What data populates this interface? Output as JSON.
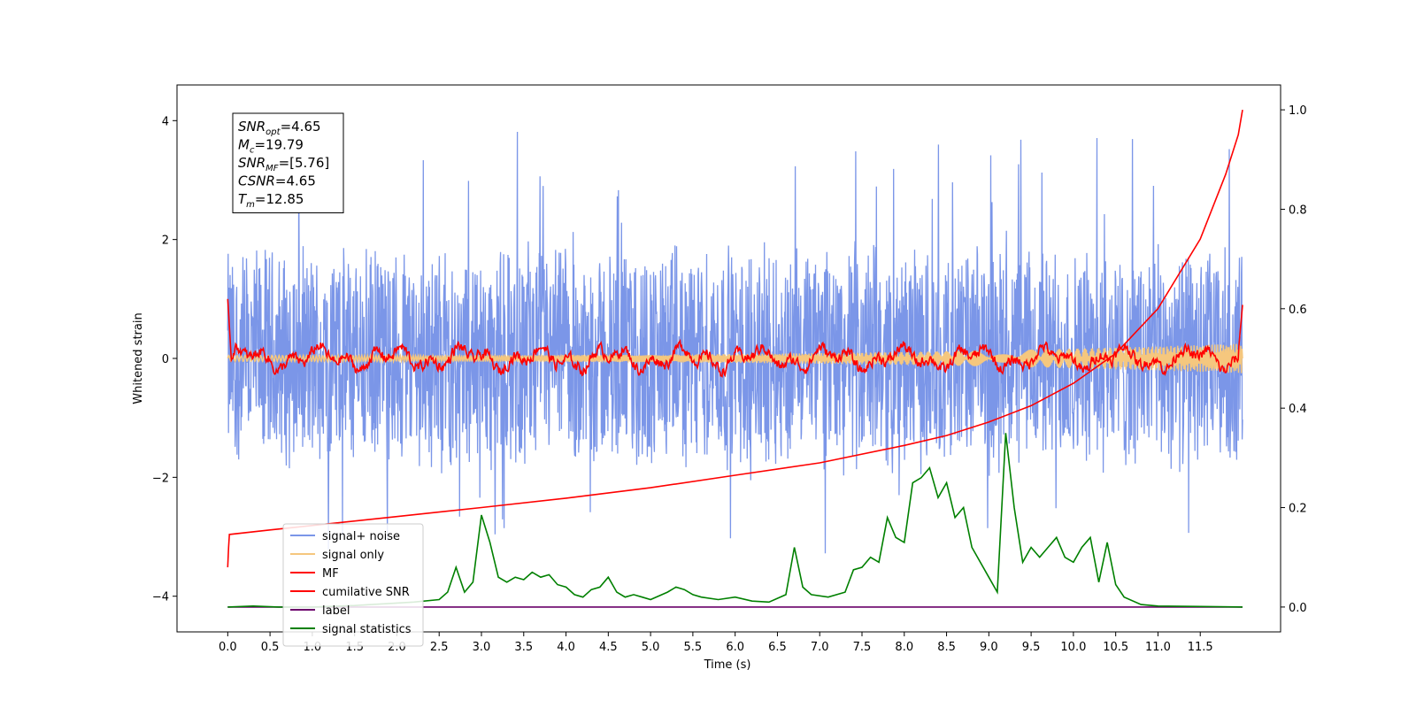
{
  "chart_data": {
    "type": "line",
    "xlabel": "Time (s)",
    "ylabel": "Whitened strain",
    "xlim": [
      -0.6,
      12.45
    ],
    "ylim_left": [
      -4.6,
      4.6
    ],
    "ylim_right": [
      -0.05,
      1.05
    ],
    "x_ticks": [
      0.0,
      0.5,
      1.0,
      1.5,
      2.0,
      2.5,
      3.0,
      3.5,
      4.0,
      4.5,
      5.0,
      5.5,
      6.0,
      6.5,
      7.0,
      7.5,
      8.0,
      8.5,
      9.0,
      9.5,
      10.0,
      10.5,
      11.0,
      11.5
    ],
    "x_tick_labels": [
      "0.0",
      "0.5",
      "1.0",
      "1.5",
      "2.0",
      "2.5",
      "3.0",
      "3.5",
      "4.0",
      "4.5",
      "5.0",
      "5.5",
      "6.0",
      "6.5",
      "7.0",
      "7.5",
      "8.0",
      "8.5",
      "9.0",
      "9.5",
      "10.0",
      "10.5",
      "11.0",
      "11.5"
    ],
    "y_left_ticks": [
      -4,
      -2,
      0,
      2,
      4
    ],
    "y_left_tick_labels": [
      "−4",
      "−2",
      "0",
      "2",
      "4"
    ],
    "y_right_ticks": [
      0.0,
      0.2,
      0.4,
      0.6,
      0.8,
      1.0
    ],
    "y_right_tick_labels": [
      "0.0",
      "0.2",
      "0.4",
      "0.6",
      "0.8",
      "1.0"
    ],
    "grid": false,
    "legend_position": "lower-left",
    "annotation": {
      "lines": [
        {
          "base": "SNR",
          "sub": "opt",
          "value": "=4.65"
        },
        {
          "base": "M",
          "sub": "c",
          "value": "=19.79"
        },
        {
          "base": "SNR",
          "sub": "MF",
          "value": "=[5.76]"
        },
        {
          "base": "CSNR",
          "sub": "",
          "value": "=4.65"
        },
        {
          "base": "T",
          "sub": "m",
          "value": "=12.85"
        }
      ]
    },
    "series": [
      {
        "name": "signal+ noise",
        "axis": "left",
        "color": "#7b96e8",
        "kind": "noise",
        "x_range": [
          0.0,
          12.0
        ],
        "envelope": [
          -2.0,
          2.0
        ],
        "extreme_range": [
          -3.3,
          3.9
        ]
      },
      {
        "name": "signal only",
        "axis": "left",
        "color": "#f5c77e",
        "kind": "chirp",
        "x_range": [
          0.0,
          12.0
        ],
        "amplitude_start": 0.05,
        "amplitude_end": 0.25
      },
      {
        "name": "MF",
        "axis": "left",
        "color": "#ff0000",
        "kind": "matched-filter",
        "x_range": [
          0.0,
          12.0
        ],
        "start_value": 1.0,
        "end_value": 0.9,
        "range": [
          -0.3,
          0.5
        ]
      },
      {
        "name": "cumilative SNR",
        "axis": "right",
        "color": "#ff0000",
        "x": [
          0.0,
          0.01,
          0.02,
          0.5,
          1.0,
          2.0,
          3.0,
          4.0,
          5.0,
          6.0,
          7.0,
          8.0,
          8.5,
          9.0,
          9.5,
          10.0,
          10.5,
          11.0,
          11.5,
          11.8,
          11.95,
          12.0
        ],
        "values": [
          0.08,
          0.12,
          0.146,
          0.155,
          0.164,
          0.182,
          0.2,
          0.219,
          0.24,
          0.265,
          0.29,
          0.325,
          0.345,
          0.372,
          0.405,
          0.45,
          0.51,
          0.6,
          0.74,
          0.87,
          0.95,
          1.0
        ]
      },
      {
        "name": "label",
        "axis": "right",
        "color": "#6a006a",
        "x": [
          0.0,
          12.0
        ],
        "values": [
          0.0,
          0.0
        ]
      },
      {
        "name": "signal statistics",
        "axis": "right",
        "color": "#008000",
        "x": [
          0.0,
          0.3,
          0.6,
          1.0,
          1.5,
          2.0,
          2.2,
          2.5,
          2.6,
          2.7,
          2.8,
          2.9,
          3.0,
          3.1,
          3.2,
          3.3,
          3.4,
          3.5,
          3.6,
          3.7,
          3.8,
          3.9,
          4.0,
          4.1,
          4.2,
          4.3,
          4.4,
          4.5,
          4.6,
          4.7,
          4.8,
          4.9,
          5.0,
          5.2,
          5.3,
          5.4,
          5.5,
          5.6,
          5.8,
          6.0,
          6.2,
          6.4,
          6.6,
          6.7,
          6.8,
          6.9,
          7.1,
          7.3,
          7.4,
          7.5,
          7.6,
          7.7,
          7.8,
          7.9,
          8.0,
          8.1,
          8.2,
          8.3,
          8.4,
          8.5,
          8.6,
          8.7,
          8.8,
          9.0,
          9.1,
          9.2,
          9.3,
          9.4,
          9.5,
          9.6,
          9.7,
          9.8,
          9.9,
          10.0,
          10.1,
          10.2,
          10.3,
          10.4,
          10.5,
          10.6,
          10.8,
          11.0,
          11.5,
          12.0
        ],
        "values": [
          0.0,
          0.002,
          0.0,
          0.0,
          0.003,
          0.008,
          0.01,
          0.015,
          0.03,
          0.08,
          0.03,
          0.05,
          0.185,
          0.13,
          0.06,
          0.05,
          0.06,
          0.055,
          0.07,
          0.06,
          0.065,
          0.045,
          0.04,
          0.025,
          0.02,
          0.035,
          0.04,
          0.06,
          0.03,
          0.02,
          0.025,
          0.02,
          0.015,
          0.03,
          0.04,
          0.035,
          0.025,
          0.02,
          0.015,
          0.02,
          0.012,
          0.01,
          0.025,
          0.12,
          0.04,
          0.025,
          0.02,
          0.03,
          0.075,
          0.08,
          0.1,
          0.09,
          0.18,
          0.14,
          0.13,
          0.25,
          0.26,
          0.28,
          0.22,
          0.25,
          0.18,
          0.2,
          0.12,
          0.06,
          0.03,
          0.35,
          0.2,
          0.09,
          0.12,
          0.1,
          0.12,
          0.14,
          0.1,
          0.09,
          0.12,
          0.14,
          0.05,
          0.13,
          0.045,
          0.02,
          0.005,
          0.002,
          0.001,
          0.0
        ]
      }
    ]
  }
}
